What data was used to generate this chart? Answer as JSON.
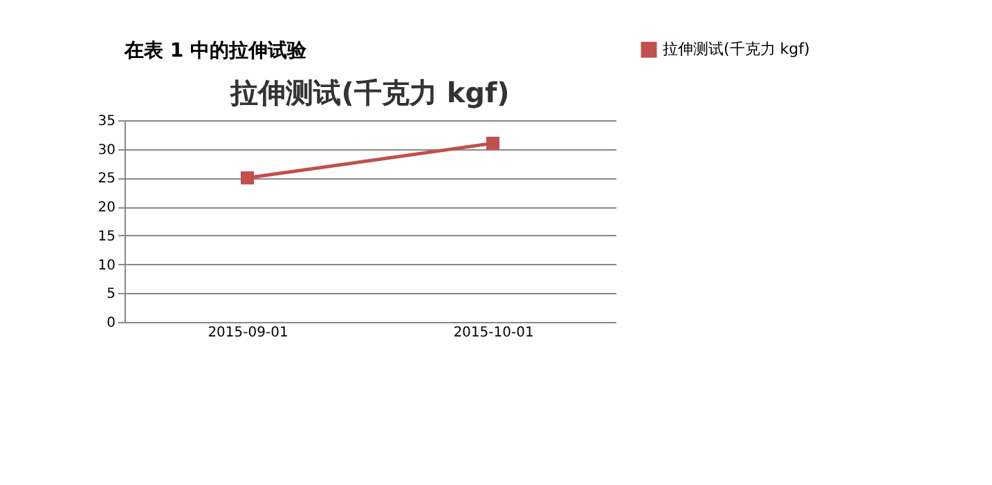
{
  "chart_data": {
    "type": "line",
    "title": "拉伸测试(千克力 kgf)",
    "annotations": [
      "在表 1 中的拉伸试验"
    ],
    "categories": [
      "2015-09-01",
      "2015-10-01"
    ],
    "series": [
      {
        "name": "拉伸测试(千克力 kgf)",
        "color": "#c0504d",
        "values": [
          25,
          31
        ]
      }
    ],
    "ylim": [
      0,
      35
    ],
    "yticks": [
      0,
      5,
      10,
      15,
      20,
      25,
      30,
      35
    ],
    "grid": "y",
    "legend": "right",
    "marker": "square",
    "line_style": "solid"
  }
}
